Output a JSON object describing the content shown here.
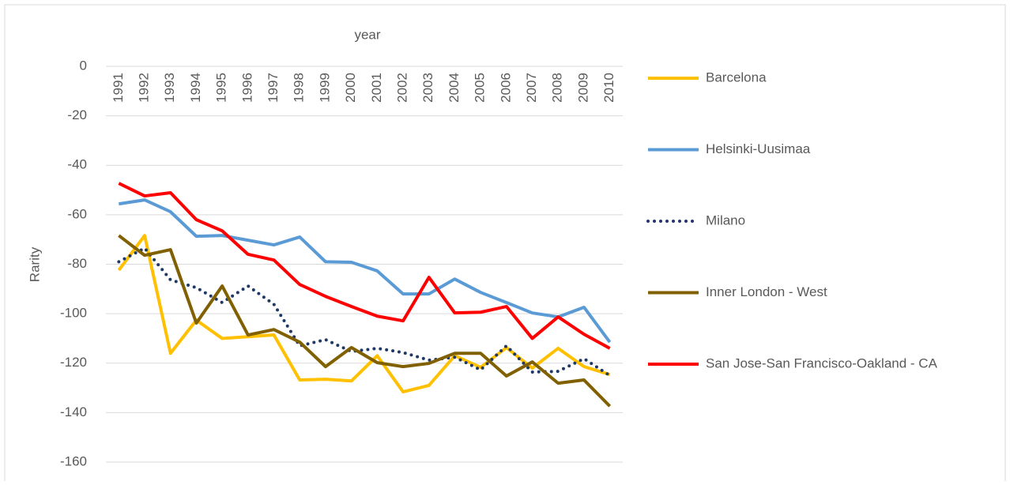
{
  "chart_data": {
    "type": "line",
    "title": "year",
    "y_label": "Rarity",
    "categories": [
      "1991",
      "1992",
      "1993",
      "1994",
      "1995",
      "1996",
      "1997",
      "1998",
      "1999",
      "2000",
      "2001",
      "2002",
      "2003",
      "2004",
      "2005",
      "2006",
      "2007",
      "2008",
      "2009",
      "2010"
    ],
    "series": [
      {
        "name": "Barcelona",
        "color": "#FFC000",
        "dash": "solid",
        "values": [
          -82.4,
          -68.4,
          -116,
          -102.6,
          -110,
          -109.3,
          -108.6,
          -126.8,
          -126.5,
          -127.2,
          -117,
          -131.6,
          -129,
          -117,
          -121.7,
          -113.7,
          -122,
          -114,
          -121.4,
          -124.6
        ]
      },
      {
        "name": "Helsinki-Uusimaa",
        "color": "#5B9BD5",
        "dash": "solid",
        "values": [
          -55.6,
          -54,
          -58.8,
          -68.7,
          -68.4,
          -70.3,
          -72.2,
          -69,
          -79,
          -79.2,
          -82.7,
          -92,
          -92,
          -86,
          -91.4,
          -95.5,
          -99.7,
          -101.3,
          -97.4,
          -111.5
        ]
      },
      {
        "name": "Milano",
        "color": "#203864",
        "dash": "dotted",
        "values": [
          -79,
          -73.5,
          -86.3,
          -89.5,
          -95.5,
          -88.8,
          -96.2,
          -113,
          -110.5,
          -115.3,
          -114,
          -115.7,
          -118.8,
          -117.6,
          -122.7,
          -113,
          -123.6,
          -123.3,
          -118.2,
          -125
        ]
      },
      {
        "name": "Inner London - West",
        "color": "#806000",
        "dash": "solid",
        "values": [
          -68.4,
          -76.4,
          -74.1,
          -103.8,
          -88.8,
          -108.6,
          -106.4,
          -111.5,
          -121.4,
          -113.7,
          -119.8,
          -121.4,
          -120.1,
          -116,
          -116,
          -125.2,
          -119.5,
          -128.1,
          -126.8,
          -137.4
        ]
      },
      {
        "name": "San Jose-San Francisco-Oakland - CA",
        "color": "#FF0000",
        "dash": "solid",
        "values": [
          -47.3,
          -52.4,
          -51.1,
          -62,
          -66.5,
          -76,
          -78.3,
          -88.2,
          -93,
          -97.1,
          -101,
          -102.9,
          -85.3,
          -99.7,
          -99.4,
          -97.1,
          -110,
          -101.3,
          -108.3,
          -114
        ]
      }
    ],
    "ylim": [
      -160,
      0
    ],
    "yticks": [
      0,
      -20,
      -40,
      -60,
      -80,
      -100,
      -120,
      -140,
      -160
    ],
    "grid": true,
    "legend": "right"
  }
}
